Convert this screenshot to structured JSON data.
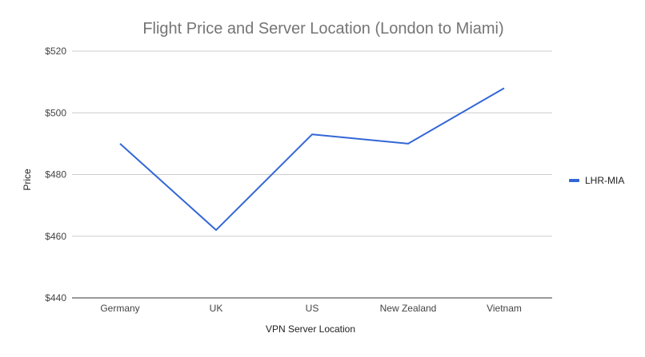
{
  "chart_data": {
    "type": "line",
    "title": "Flight Price and Server Location (London to Miami)",
    "xlabel": "VPN Server Location",
    "ylabel": "Price",
    "categories": [
      "Germany",
      "UK",
      "US",
      "New Zealand",
      "Vietnam"
    ],
    "series": [
      {
        "name": "LHR-MIA",
        "values": [
          490,
          462,
          493,
          490,
          508
        ],
        "color": "#3367d6"
      }
    ],
    "ylim": [
      440,
      520
    ],
    "yticks": [
      440,
      460,
      480,
      500,
      520
    ],
    "ytick_labels": [
      "$440",
      "$460",
      "$480",
      "$500",
      "$520"
    ],
    "grid": true,
    "legend_position": "right"
  }
}
